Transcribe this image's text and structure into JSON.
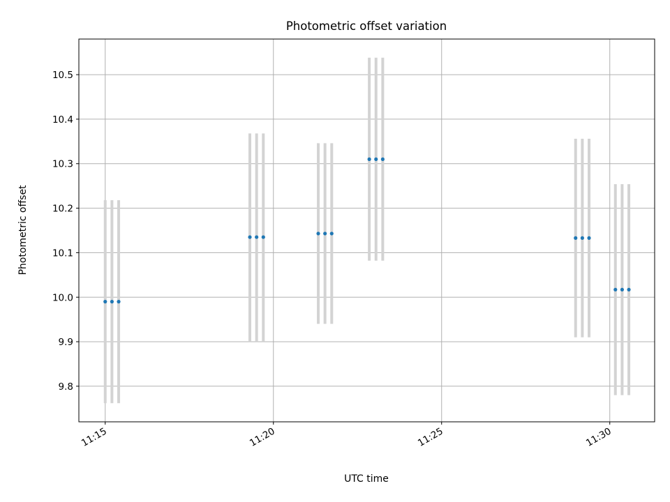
{
  "chart_data": {
    "type": "scatter",
    "title": "Photometric offset variation",
    "xlabel": "UTC time",
    "ylabel": "Photometric offset",
    "grid": true,
    "x_ticks": [
      "11:15",
      "11:20",
      "11:25",
      "11:30"
    ],
    "y_ticks": [
      "9.8",
      "9.9",
      "10.0",
      "10.1",
      "10.2",
      "10.3",
      "10.4",
      "10.5"
    ],
    "ylim": [
      9.72,
      10.58
    ],
    "xlim": [
      "11:14:13",
      "11:31:20"
    ],
    "marker_color": "#1f77b4",
    "errorbar_color": "#d3d3d3",
    "series": [
      {
        "points": [
          {
            "time": "11:15:00",
            "y": 9.99,
            "ylow": 9.762,
            "yhigh": 10.218
          },
          {
            "time": "11:15:12",
            "y": 9.99,
            "ylow": 9.762,
            "yhigh": 10.218
          },
          {
            "time": "11:15:24",
            "y": 9.99,
            "ylow": 9.762,
            "yhigh": 10.218
          },
          {
            "time": "11:19:18",
            "y": 10.135,
            "ylow": 9.9,
            "yhigh": 10.368
          },
          {
            "time": "11:19:30",
            "y": 10.135,
            "ylow": 9.9,
            "yhigh": 10.368
          },
          {
            "time": "11:19:42",
            "y": 10.135,
            "ylow": 9.9,
            "yhigh": 10.368
          },
          {
            "time": "11:21:20",
            "y": 10.143,
            "ylow": 9.94,
            "yhigh": 10.346
          },
          {
            "time": "11:21:32",
            "y": 10.143,
            "ylow": 9.94,
            "yhigh": 10.346
          },
          {
            "time": "11:21:44",
            "y": 10.143,
            "ylow": 9.94,
            "yhigh": 10.346
          },
          {
            "time": "11:22:51",
            "y": 10.31,
            "ylow": 10.082,
            "yhigh": 10.538
          },
          {
            "time": "11:23:03",
            "y": 10.31,
            "ylow": 10.082,
            "yhigh": 10.538
          },
          {
            "time": "11:23:15",
            "y": 10.31,
            "ylow": 10.082,
            "yhigh": 10.538
          },
          {
            "time": "11:28:59",
            "y": 10.133,
            "ylow": 9.91,
            "yhigh": 10.356
          },
          {
            "time": "11:29:11",
            "y": 10.133,
            "ylow": 9.91,
            "yhigh": 10.356
          },
          {
            "time": "11:29:23",
            "y": 10.133,
            "ylow": 9.91,
            "yhigh": 10.356
          },
          {
            "time": "11:30:10",
            "y": 10.017,
            "ylow": 9.78,
            "yhigh": 10.254
          },
          {
            "time": "11:30:22",
            "y": 10.017,
            "ylow": 9.78,
            "yhigh": 10.254
          },
          {
            "time": "11:30:34",
            "y": 10.017,
            "ylow": 9.78,
            "yhigh": 10.254
          }
        ]
      }
    ]
  }
}
